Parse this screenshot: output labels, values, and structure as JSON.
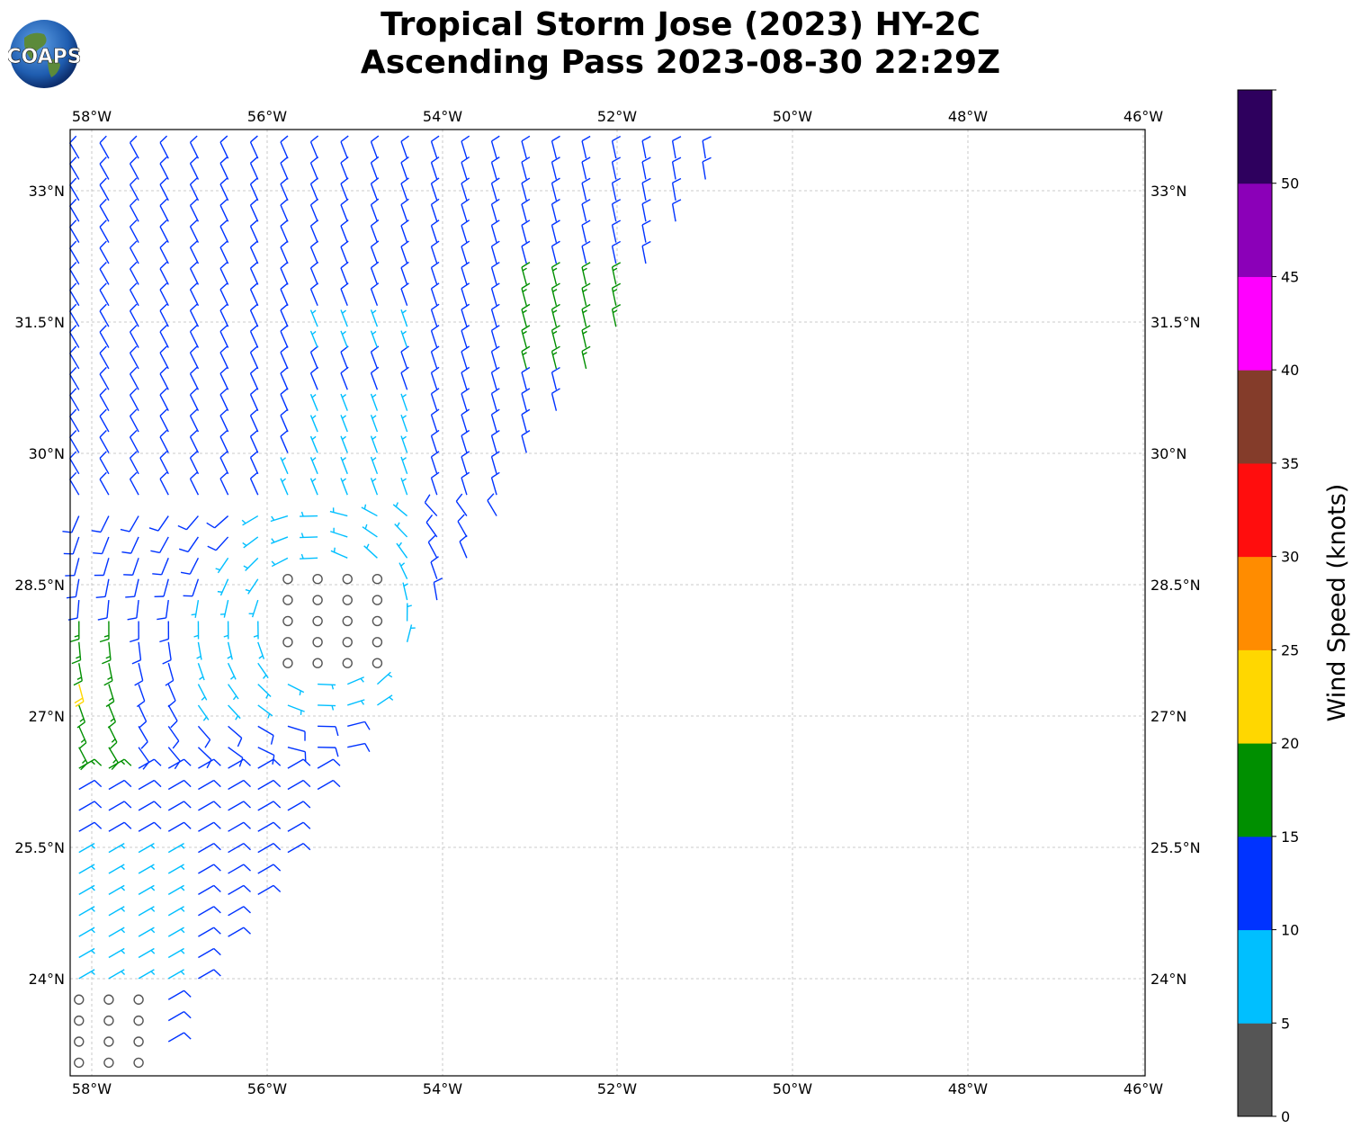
{
  "title": {
    "line1": "Tropical Storm Jose (2023) HY-2C",
    "line2": "Ascending Pass 2023-08-30 22:29Z"
  },
  "logo": {
    "text": "COAPS",
    "icon": "globe-icon"
  },
  "map": {
    "lon_ticks": [
      "58°W",
      "56°W",
      "54°W",
      "52°W",
      "50°W",
      "48°W",
      "46°W"
    ],
    "lat_ticks": [
      "33°N",
      "31.5°N",
      "30°N",
      "28.5°N",
      "27°N",
      "25.5°N",
      "24°N"
    ],
    "lon_range": [
      -58.25,
      -46.0
    ],
    "lat_range": [
      22.9,
      33.7
    ],
    "grid": true,
    "swath_edge": "diagonal from 33.7°N 50.6°W to 23.0°N 57.3°W"
  },
  "colorbar": {
    "label": "Wind Speed (knots)",
    "ticks": [
      "0",
      "5",
      "10",
      "15",
      "20",
      "25",
      "30",
      "35",
      "40",
      "45",
      "50"
    ],
    "bins": [
      {
        "min": 0,
        "max": 5,
        "color": "#555555"
      },
      {
        "min": 5,
        "max": 10,
        "color": "#00bfff"
      },
      {
        "min": 10,
        "max": 15,
        "color": "#0033ff"
      },
      {
        "min": 15,
        "max": 20,
        "color": "#008f00"
      },
      {
        "min": 20,
        "max": 25,
        "color": "#ffd700"
      },
      {
        "min": 25,
        "max": 30,
        "color": "#ff8c00"
      },
      {
        "min": 30,
        "max": 35,
        "color": "#ff0d0d"
      },
      {
        "min": 35,
        "max": 40,
        "color": "#843c2a"
      },
      {
        "min": 40,
        "max": 45,
        "color": "#ff00ff"
      },
      {
        "min": 45,
        "max": 50,
        "color": "#8b00b8"
      },
      {
        "min": 50,
        "max": 55,
        "color": "#2e005e"
      }
    ]
  },
  "chart_data": {
    "type": "wind-barb map",
    "series": [
      {
        "name": "0-5 kt",
        "color": "#555555",
        "region": "near 23.5°N 57.8°W and 28°N 55°W (calm circles and light barbs)"
      },
      {
        "name": "5-10 kt",
        "color": "#00bfff",
        "region": "24-25.5°N west edge; 27-29.5°N 55-57°W"
      },
      {
        "name": "10-15 kt",
        "color": "#0033ff",
        "region": "most of swath north of 28°N and 25.5-27°N"
      },
      {
        "name": "15-20 kt",
        "color": "#008f00",
        "region": "31-32°N 52-53°W; 26-28°N 58°W"
      },
      {
        "name": "20-25 kt",
        "color": "#ffd700",
        "region": "27.3°N 58°W"
      }
    ]
  }
}
